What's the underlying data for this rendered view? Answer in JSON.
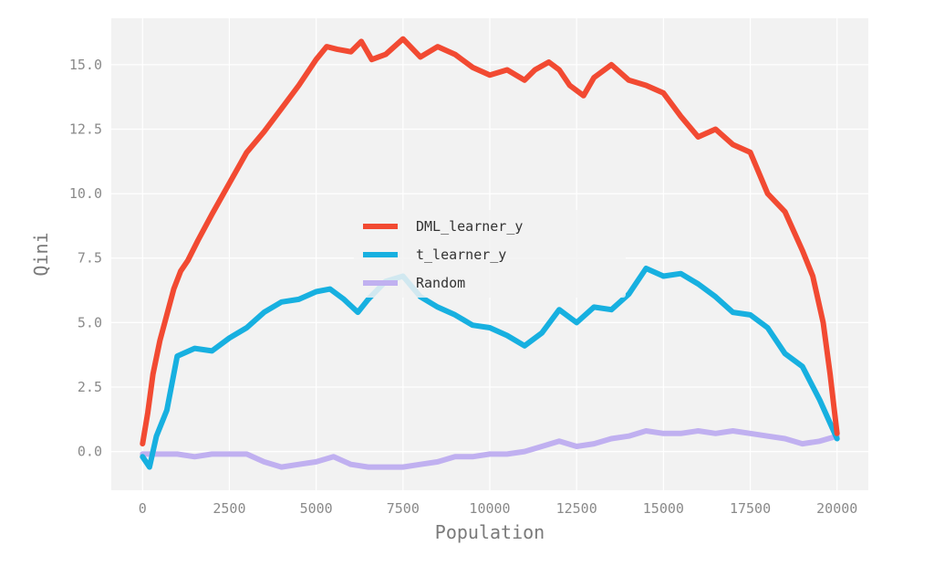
{
  "chart_data": {
    "type": "line",
    "title": "",
    "xlabel": "Population",
    "ylabel": "Qini",
    "xlim": [
      -900,
      20900
    ],
    "ylim": [
      -1.5,
      16.8
    ],
    "xticks": [
      0,
      2500,
      5000,
      7500,
      10000,
      12500,
      15000,
      17500,
      20000
    ],
    "yticks": [
      0.0,
      2.5,
      5.0,
      7.5,
      10.0,
      12.5,
      15.0
    ],
    "ytick_labels": [
      "0.0",
      "2.5",
      "5.0",
      "7.5",
      "10.0",
      "12.5",
      "15.0"
    ],
    "grid": true,
    "legend_position": "center",
    "series": [
      {
        "name": "DML_learner_y",
        "color": "#f24a32",
        "x": [
          0,
          150,
          300,
          500,
          700,
          900,
          1100,
          1300,
          1600,
          2000,
          2500,
          3000,
          3500,
          4000,
          4500,
          5000,
          5300,
          5600,
          6000,
          6300,
          6600,
          7000,
          7500,
          8000,
          8500,
          9000,
          9500,
          10000,
          10500,
          11000,
          11300,
          11700,
          12000,
          12300,
          12700,
          13000,
          13500,
          14000,
          14500,
          15000,
          15500,
          16000,
          16500,
          17000,
          17500,
          18000,
          18500,
          19000,
          19300,
          19600,
          19800,
          20000
        ],
        "y": [
          0.3,
          1.5,
          3.0,
          4.3,
          5.3,
          6.3,
          7.0,
          7.4,
          8.2,
          9.2,
          10.4,
          11.6,
          12.4,
          13.3,
          14.2,
          15.2,
          15.7,
          15.6,
          15.5,
          15.9,
          15.2,
          15.4,
          16.0,
          15.3,
          15.7,
          15.4,
          14.9,
          14.6,
          14.8,
          14.4,
          14.8,
          15.1,
          14.8,
          14.2,
          13.8,
          14.5,
          15.0,
          14.4,
          14.2,
          13.9,
          13.0,
          12.2,
          12.5,
          11.9,
          11.6,
          10.0,
          9.3,
          7.8,
          6.8,
          5.0,
          3.0,
          0.7
        ]
      },
      {
        "name": "t_learner_y",
        "color": "#17b0e0",
        "x": [
          0,
          200,
          400,
          700,
          1000,
          1500,
          2000,
          2500,
          3000,
          3500,
          4000,
          4500,
          5000,
          5400,
          5800,
          6200,
          6500,
          7000,
          7500,
          8000,
          8500,
          9000,
          9500,
          10000,
          10500,
          11000,
          11500,
          12000,
          12500,
          13000,
          13500,
          14000,
          14500,
          15000,
          15500,
          16000,
          16500,
          17000,
          17500,
          18000,
          18500,
          19000,
          19500,
          20000
        ],
        "y": [
          -0.2,
          -0.6,
          0.6,
          1.6,
          3.7,
          4.0,
          3.9,
          4.4,
          4.8,
          5.4,
          5.8,
          5.9,
          6.2,
          6.3,
          5.9,
          5.4,
          5.9,
          6.6,
          6.8,
          6.0,
          5.6,
          5.3,
          4.9,
          4.8,
          4.5,
          4.1,
          4.6,
          5.5,
          5.0,
          5.6,
          5.5,
          6.1,
          7.1,
          6.8,
          6.9,
          6.5,
          6.0,
          5.4,
          5.3,
          4.8,
          3.8,
          3.3,
          2.0,
          0.5
        ]
      },
      {
        "name": "Random",
        "color": "#c0b0f0",
        "x": [
          0,
          500,
          1000,
          1500,
          2000,
          2500,
          3000,
          3500,
          4000,
          4500,
          5000,
          5500,
          6000,
          6500,
          7000,
          7500,
          8000,
          8500,
          9000,
          9500,
          10000,
          10500,
          11000,
          11500,
          12000,
          12500,
          13000,
          13500,
          14000,
          14500,
          15000,
          15500,
          16000,
          16500,
          17000,
          17500,
          18000,
          18500,
          19000,
          19500,
          20000
        ],
        "y": [
          -0.1,
          -0.1,
          -0.1,
          -0.2,
          -0.1,
          -0.1,
          -0.1,
          -0.4,
          -0.6,
          -0.5,
          -0.4,
          -0.2,
          -0.5,
          -0.6,
          -0.6,
          -0.6,
          -0.5,
          -0.4,
          -0.2,
          -0.2,
          -0.1,
          -0.1,
          0.0,
          0.2,
          0.4,
          0.2,
          0.3,
          0.5,
          0.6,
          0.8,
          0.7,
          0.7,
          0.8,
          0.7,
          0.8,
          0.7,
          0.6,
          0.5,
          0.3,
          0.4,
          0.6
        ]
      }
    ]
  }
}
